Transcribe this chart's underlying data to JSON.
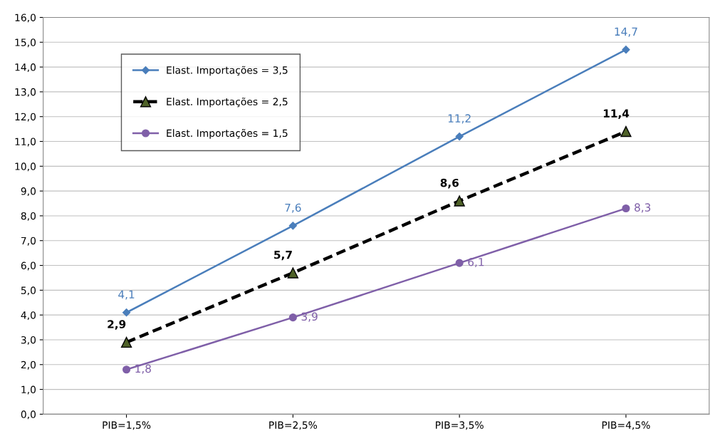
{
  "chart_data": {
    "type": "line",
    "categories": [
      "PIB=1,5%",
      "PIB=2,5%",
      "PIB=3,5%",
      "PIB=4,5%"
    ],
    "series": [
      {
        "name": "Elast. Importações = 3,5",
        "color": "#4a7ebb",
        "marker": "diamond",
        "line_style": "solid",
        "values": [
          4.1,
          7.6,
          11.2,
          14.7
        ],
        "value_labels": [
          "4,1",
          "7,6",
          "11,2",
          "14,7"
        ]
      },
      {
        "name": "Elast. Importações = 2,5",
        "color": "#000000",
        "marker": "triangle",
        "line_style": "dashed",
        "values": [
          2.9,
          5.7,
          8.6,
          11.4
        ],
        "value_labels": [
          "2,9",
          "5,7",
          "8,6",
          "11,4"
        ]
      },
      {
        "name": "Elast. Importações = 1,5",
        "color": "#7f5fa8",
        "marker": "circle",
        "line_style": "solid",
        "values": [
          1.8,
          3.9,
          6.1,
          8.3
        ],
        "value_labels": [
          "1,8",
          "3,9",
          "6,1",
          "8,3"
        ]
      }
    ],
    "ylim": [
      0,
      16
    ],
    "yticks": [
      {
        "value": 0,
        "label": "0,0"
      },
      {
        "value": 1,
        "label": "1,0"
      },
      {
        "value": 2,
        "label": "2,0"
      },
      {
        "value": 3,
        "label": "3,0"
      },
      {
        "value": 4,
        "label": "4,0"
      },
      {
        "value": 5,
        "label": "5,0"
      },
      {
        "value": 6,
        "label": "6,0"
      },
      {
        "value": 7,
        "label": "7,0"
      },
      {
        "value": 8,
        "label": "8,0"
      },
      {
        "value": 9,
        "label": "9,0"
      },
      {
        "value": 10,
        "label": "10,0"
      },
      {
        "value": 11,
        "label": "11,0"
      },
      {
        "value": 12,
        "label": "12,0"
      },
      {
        "value": 13,
        "label": "13,0"
      },
      {
        "value": 14,
        "label": "14,0"
      },
      {
        "value": 15,
        "label": "15,0"
      },
      {
        "value": 16,
        "label": "16,0"
      }
    ],
    "grid": "y",
    "legend": "top left"
  }
}
